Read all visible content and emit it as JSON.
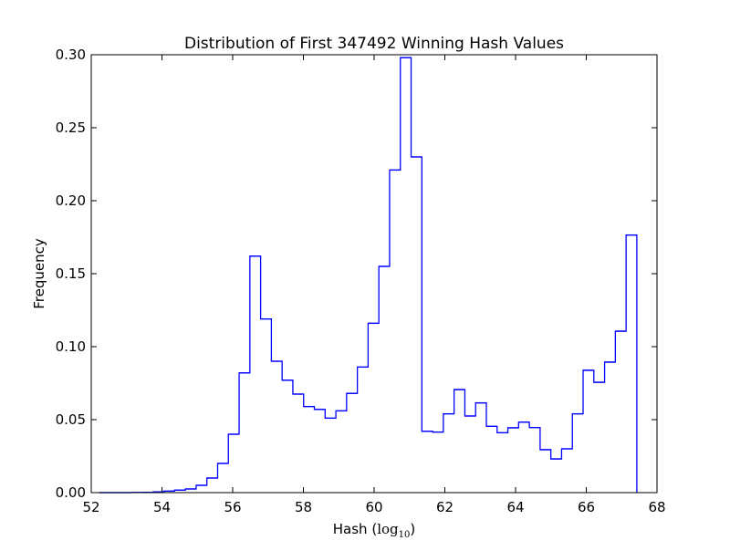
{
  "chart_data": {
    "type": "histogram-step",
    "title": "Distribution of First 347492 Winning Hash Values",
    "xlabel": "Hash",
    "xlabel_unit": "log",
    "xlabel_unit_sub": "10",
    "ylabel": "Frequency",
    "xlim": [
      52,
      68
    ],
    "ylim": [
      0,
      0.3
    ],
    "xticks": [
      "52",
      "54",
      "56",
      "58",
      "60",
      "62",
      "64",
      "66",
      "68"
    ],
    "yticks": [
      "0.00",
      "0.05",
      "0.10",
      "0.15",
      "0.20",
      "0.25",
      "0.30"
    ],
    "grid": false,
    "line_color": "#0000ff",
    "bin_range": [
      52.23,
      67.43
    ],
    "values": [
      0,
      0,
      0,
      0.0001,
      0.0002,
      0.0005,
      0.001,
      0.0017,
      0.0025,
      0.005,
      0.01,
      0.02,
      0.04,
      0.082,
      0.162,
      0.119,
      0.09,
      0.077,
      0.0675,
      0.059,
      0.057,
      0.051,
      0.056,
      0.068,
      0.086,
      0.116,
      0.155,
      0.221,
      0.298,
      0.23,
      0.042,
      0.0415,
      0.054,
      0.0706,
      0.0525,
      0.0615,
      0.0454,
      0.041,
      0.0444,
      0.0483,
      0.0446,
      0.0294,
      0.0231,
      0.03,
      0.054,
      0.0838,
      0.0756,
      0.0894,
      0.1106,
      0.1765
    ]
  }
}
